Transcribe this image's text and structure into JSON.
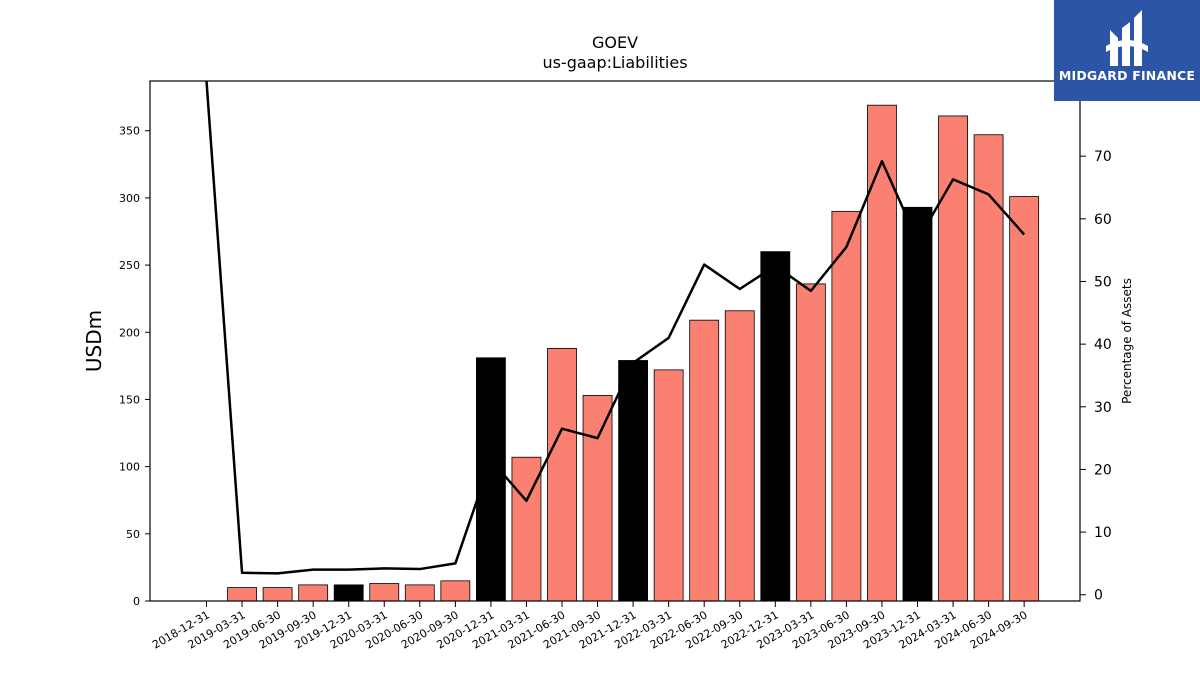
{
  "chart_data": {
    "type": "bar",
    "title": "GOEV",
    "subtitle": "us-gaap:Liabilities",
    "ylabel": "USDm",
    "y2label": "Percentage of Assets",
    "ylim": [
      0,
      387
    ],
    "y2lim": [
      -1,
      82
    ],
    "yticks": [
      0,
      50,
      100,
      150,
      200,
      250,
      300,
      350
    ],
    "y2ticks": [
      0,
      10,
      20,
      30,
      40,
      50,
      60,
      70
    ],
    "categories": [
      "2018-12-31",
      "2019-03-31",
      "2019-06-30",
      "2019-09-30",
      "2019-12-31",
      "2020-03-31",
      "2020-06-30",
      "2020-09-30",
      "2020-12-31",
      "2021-03-31",
      "2021-06-30",
      "2021-09-30",
      "2021-12-31",
      "2022-03-31",
      "2022-06-30",
      "2022-09-30",
      "2022-12-31",
      "2023-03-31",
      "2023-06-30",
      "2023-09-30",
      "2023-12-31",
      "2024-03-31",
      "2024-06-30",
      "2024-09-30"
    ],
    "series": [
      {
        "kind": "bar",
        "values": [
          0,
          10,
          10,
          12,
          12,
          13,
          12,
          15,
          181,
          107,
          188,
          153,
          179,
          172,
          209,
          216,
          260,
          236,
          290,
          369,
          293,
          361,
          347,
          301
        ],
        "year_end": [
          false,
          false,
          false,
          false,
          true,
          false,
          false,
          false,
          true,
          false,
          false,
          false,
          true,
          false,
          false,
          false,
          true,
          false,
          false,
          false,
          true,
          false,
          false,
          false
        ]
      },
      {
        "kind": "line",
        "values": [
          83,
          3.5,
          3.4,
          4.0,
          4.0,
          4.2,
          4.1,
          5.0,
          21.5,
          15.0,
          26.5,
          25.0,
          37.0,
          41.0,
          52.7,
          48.8,
          52.5,
          48.5,
          55.5,
          69.2,
          56.5,
          66.3,
          63.9,
          57.5
        ]
      }
    ],
    "colors": {
      "bar": "#fa8072",
      "bar_year_end": "#000000",
      "line": "#000000"
    }
  },
  "logo": {
    "text": "MIDGARD FINANCE",
    "bg": "#2c55a8"
  }
}
